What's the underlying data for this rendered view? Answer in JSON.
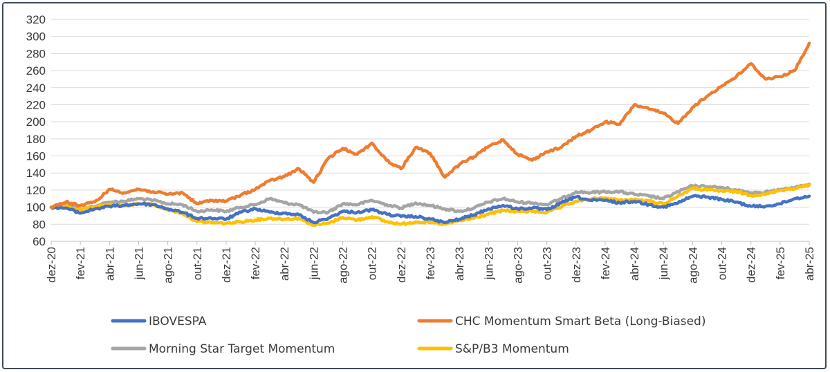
{
  "chart_data": {
    "type": "line",
    "title": "",
    "xlabel": "",
    "ylabel": "",
    "ylim": [
      60,
      320
    ],
    "y_ticks": [
      60,
      80,
      100,
      120,
      140,
      160,
      180,
      200,
      220,
      240,
      260,
      280,
      300,
      320
    ],
    "grid": "horizontal",
    "legend_position": "bottom",
    "x_ticks": [
      "dez-20",
      "fev-21",
      "abr-21",
      "jun-21",
      "ago-21",
      "out-21",
      "dez-21",
      "fev-22",
      "abr-22",
      "jun-22",
      "ago-22",
      "out-22",
      "dez-22",
      "fev-23",
      "abr-23",
      "jun-23",
      "ago-23",
      "out-23",
      "dez-23",
      "fev-24",
      "abr-24",
      "jun-24",
      "ago-24",
      "out-24",
      "dez-24",
      "fev-25",
      "abr-25"
    ],
    "series": [
      {
        "name": "IBOVESPA",
        "color": "#4472c4",
        "x": [
          "2020-12",
          "2021-01",
          "2021-02",
          "2021-03",
          "2021-04",
          "2021-05",
          "2021-06",
          "2021-07",
          "2021-08",
          "2021-09",
          "2021-10",
          "2021-11",
          "2021-12",
          "2022-01",
          "2022-02",
          "2022-03",
          "2022-04",
          "2022-05",
          "2022-06",
          "2022-07",
          "2022-08",
          "2022-09",
          "2022-10",
          "2022-11",
          "2022-12",
          "2023-01",
          "2023-02",
          "2023-03",
          "2023-04",
          "2023-05",
          "2023-06",
          "2023-07",
          "2023-08",
          "2023-09",
          "2023-10",
          "2023-11",
          "2023-12",
          "2024-01",
          "2024-02",
          "2024-03",
          "2024-04",
          "2024-05",
          "2024-06",
          "2024-07",
          "2024-08",
          "2024-09",
          "2024-10",
          "2024-11",
          "2024-12",
          "2025-01",
          "2025-02",
          "2025-03",
          "2025-04"
        ],
        "values": [
          100,
          99,
          93,
          98,
          101,
          102,
          104,
          103,
          98,
          94,
          87,
          87,
          86,
          94,
          98,
          94,
          93,
          91,
          82,
          87,
          95,
          94,
          97,
          92,
          89,
          89,
          86,
          82,
          86,
          91,
          98,
          102,
          98,
          99,
          97,
          105,
          112,
          108,
          108,
          105,
          107,
          103,
          100,
          105,
          113,
          112,
          109,
          106,
          101,
          101,
          104,
          110,
          113
        ]
      },
      {
        "name": "CHC Momentum Smart Beta (Long-Biased)",
        "color": "#ed7d31",
        "x": [
          "2020-12",
          "2021-01",
          "2021-02",
          "2021-03",
          "2021-04",
          "2021-05",
          "2021-06",
          "2021-07",
          "2021-08",
          "2021-09",
          "2021-10",
          "2021-11",
          "2021-12",
          "2022-01",
          "2022-02",
          "2022-03",
          "2022-04",
          "2022-05",
          "2022-06",
          "2022-07",
          "2022-08",
          "2022-09",
          "2022-10",
          "2022-11",
          "2022-12",
          "2023-01",
          "2023-02",
          "2023-03",
          "2023-04",
          "2023-05",
          "2023-06",
          "2023-07",
          "2023-08",
          "2023-09",
          "2023-10",
          "2023-11",
          "2023-12",
          "2024-01",
          "2024-02",
          "2024-03",
          "2024-04",
          "2024-05",
          "2024-06",
          "2024-07",
          "2024-08",
          "2024-09",
          "2024-10",
          "2024-11",
          "2024-12",
          "2025-01",
          "2025-02",
          "2025-03",
          "2025-04"
        ],
        "values": [
          100,
          106,
          102,
          106,
          121,
          117,
          121,
          118,
          115,
          117,
          104,
          108,
          107,
          114,
          121,
          131,
          136,
          145,
          129,
          157,
          169,
          162,
          175,
          155,
          145,
          170,
          163,
          135,
          150,
          159,
          171,
          179,
          162,
          155,
          165,
          170,
          183,
          190,
          200,
          197,
          220,
          215,
          210,
          198,
          217,
          230,
          242,
          253,
          268,
          250,
          253,
          260,
          292
        ]
      },
      {
        "name": "Morning Star Target Momentum",
        "color": "#a5a5a5",
        "x": [
          "2020-12",
          "2021-01",
          "2021-02",
          "2021-03",
          "2021-04",
          "2021-05",
          "2021-06",
          "2021-07",
          "2021-08",
          "2021-09",
          "2021-10",
          "2021-11",
          "2021-12",
          "2022-01",
          "2022-02",
          "2022-03",
          "2022-04",
          "2022-05",
          "2022-06",
          "2022-07",
          "2022-08",
          "2022-09",
          "2022-10",
          "2022-11",
          "2022-12",
          "2023-01",
          "2023-02",
          "2023-03",
          "2023-04",
          "2023-05",
          "2023-06",
          "2023-07",
          "2023-08",
          "2023-09",
          "2023-10",
          "2023-11",
          "2023-12",
          "2024-01",
          "2024-02",
          "2024-03",
          "2024-04",
          "2024-05",
          "2024-06",
          "2024-07",
          "2024-08",
          "2024-09",
          "2024-10",
          "2024-11",
          "2024-12",
          "2025-01",
          "2025-02",
          "2025-03",
          "2025-04"
        ],
        "values": [
          100,
          103,
          98,
          101,
          106,
          107,
          110,
          108,
          104,
          103,
          95,
          97,
          95,
          100,
          103,
          110,
          105,
          103,
          94,
          94,
          104,
          103,
          108,
          103,
          99,
          105,
          102,
          98,
          95,
          99,
          106,
          110,
          106,
          105,
          103,
          110,
          118,
          117,
          118,
          118,
          115,
          113,
          110,
          118,
          125,
          124,
          123,
          120,
          117,
          118,
          120,
          123,
          127
        ]
      },
      {
        "name": "S&P/B3 Momentum",
        "color": "#ffc000",
        "x": [
          "2020-12",
          "2021-01",
          "2021-02",
          "2021-03",
          "2021-04",
          "2021-05",
          "2021-06",
          "2021-07",
          "2021-08",
          "2021-09",
          "2021-10",
          "2021-11",
          "2021-12",
          "2022-01",
          "2022-02",
          "2022-03",
          "2022-04",
          "2022-05",
          "2022-06",
          "2022-07",
          "2022-08",
          "2022-09",
          "2022-10",
          "2022-11",
          "2022-12",
          "2023-01",
          "2023-02",
          "2023-03",
          "2023-04",
          "2023-05",
          "2023-06",
          "2023-07",
          "2023-08",
          "2023-09",
          "2023-10",
          "2023-11",
          "2023-12",
          "2024-01",
          "2024-02",
          "2024-03",
          "2024-04",
          "2024-05",
          "2024-06",
          "2024-07",
          "2024-08",
          "2024-09",
          "2024-10",
          "2024-11",
          "2024-12",
          "2025-01",
          "2025-02",
          "2025-03",
          "2025-04"
        ],
        "values": [
          100,
          101,
          97,
          100,
          103,
          102,
          104,
          103,
          97,
          93,
          83,
          82,
          81,
          83,
          85,
          87,
          86,
          87,
          79,
          81,
          88,
          85,
          89,
          83,
          80,
          83,
          82,
          80,
          84,
          87,
          92,
          96,
          95,
          95,
          94,
          100,
          107,
          109,
          111,
          108,
          109,
          107,
          104,
          113,
          122,
          120,
          119,
          118,
          114,
          115,
          120,
          122,
          126
        ]
      }
    ]
  }
}
